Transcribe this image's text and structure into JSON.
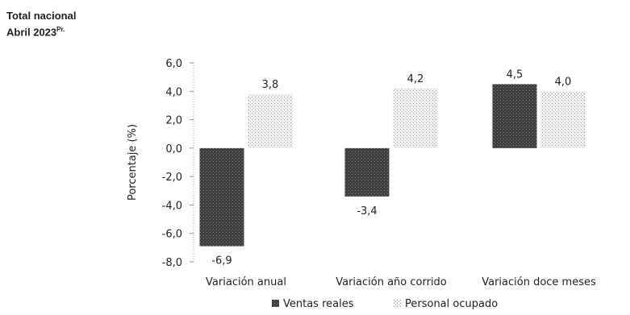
{
  "header": {
    "title": "Total nacional",
    "subtitle": "Abril 2023",
    "subtitle_sup": "Pr."
  },
  "colors": {
    "ventas": "#3d3d3d",
    "personal": "#d4d4d4",
    "axis": "#999999"
  },
  "chart_data": {
    "type": "bar",
    "title": "Total nacional",
    "subtitle": "Abril 2023 Pr.",
    "ylabel": "Porcentaje (%)",
    "xlabel": "",
    "ylim": [
      -8,
      6
    ],
    "yticks": [
      6,
      4,
      2,
      0,
      -2,
      -4,
      -6,
      -8
    ],
    "ytick_labels": [
      "6,0",
      "4,0",
      "2,0",
      "0,0",
      "-2,0",
      "-4,0",
      "-6,0",
      "-8,0"
    ],
    "categories": [
      "Variación anual",
      "Variación año corrido",
      "Variación doce meses"
    ],
    "series": [
      {
        "name": "Ventas reales",
        "values": [
          -6.9,
          -3.4,
          4.5
        ],
        "labels": [
          "-6,9",
          "-3,4",
          "4,5"
        ]
      },
      {
        "name": "Personal ocupado",
        "values": [
          3.8,
          4.2,
          4.0
        ],
        "labels": [
          "3,8",
          "4,2",
          "4,0"
        ]
      }
    ],
    "legend": "bottom",
    "grid": false
  }
}
